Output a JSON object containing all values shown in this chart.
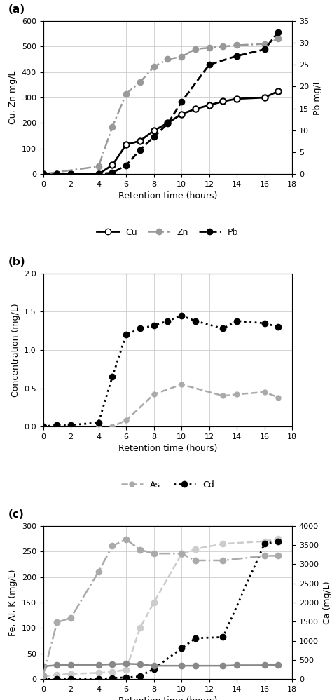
{
  "panel_a": {
    "x_cu": [
      0,
      1,
      2,
      4,
      5,
      6,
      7,
      8,
      9,
      10,
      11,
      12,
      13,
      14,
      16,
      17
    ],
    "y_cu": [
      0,
      0,
      0,
      0,
      35,
      115,
      130,
      170,
      200,
      235,
      255,
      270,
      285,
      295,
      300,
      325
    ],
    "x_zn": [
      0,
      4,
      5,
      6,
      7,
      8,
      9,
      10,
      11,
      12,
      13,
      14,
      16,
      17
    ],
    "y_zn": [
      0,
      30,
      185,
      315,
      360,
      420,
      450,
      460,
      490,
      495,
      500,
      505,
      510,
      530
    ],
    "x_pb": [
      0,
      1,
      2,
      4,
      5,
      6,
      7,
      8,
      9,
      10,
      12,
      14,
      16,
      17
    ],
    "y_pb": [
      0,
      0,
      0,
      0,
      0.3,
      2.0,
      5.5,
      8.5,
      11.5,
      16.5,
      25,
      27,
      28.5,
      32.5
    ],
    "Cu_color": "#000000",
    "Zn_color": "#999999",
    "Pb_color": "#000000",
    "ylabel_left": "Cu, Zn mg/L",
    "ylabel_right": "Pb mg/L",
    "ylim_left": [
      0,
      600
    ],
    "ylim_right": [
      0,
      35
    ],
    "yticks_left": [
      0,
      100,
      200,
      300,
      400,
      500,
      600
    ],
    "yticks_right": [
      0,
      5,
      10,
      15,
      20,
      25,
      30,
      35
    ],
    "xlabel": "Retention time (hours)",
    "xlim": [
      0,
      18
    ],
    "xticks": [
      0,
      2,
      4,
      6,
      8,
      10,
      12,
      14,
      16,
      18
    ],
    "label": "(a)"
  },
  "panel_b": {
    "x_as": [
      0,
      4,
      5,
      6,
      8,
      10,
      13,
      14,
      16,
      17
    ],
    "y_as": [
      0,
      0,
      0,
      0.08,
      0.42,
      0.55,
      0.4,
      0.42,
      0.45,
      0.38
    ],
    "x_cd": [
      0,
      1,
      2,
      4,
      5,
      6,
      7,
      8,
      9,
      10,
      11,
      13,
      14,
      16,
      17
    ],
    "y_cd": [
      0,
      0.02,
      0.02,
      0.05,
      0.65,
      1.2,
      1.28,
      1.32,
      1.38,
      1.45,
      1.38,
      1.28,
      1.38,
      1.35,
      1.3
    ],
    "As_color": "#aaaaaa",
    "Cd_color": "#000000",
    "ylabel": "Concentration (mg/L)",
    "ylim": [
      0,
      2
    ],
    "yticks": [
      0,
      0.5,
      1.0,
      1.5,
      2.0
    ],
    "xlabel": "Retention time (hours)",
    "xlim": [
      0,
      18
    ],
    "xticks": [
      0,
      2,
      4,
      6,
      8,
      10,
      12,
      14,
      16,
      18
    ],
    "label": "(b)"
  },
  "panel_c": {
    "x_fe": [
      0,
      1,
      2,
      4,
      5,
      6,
      7,
      8,
      10,
      11,
      13,
      16,
      17
    ],
    "y_fe": [
      5,
      8,
      10,
      12,
      14,
      18,
      100,
      150,
      245,
      255,
      265,
      270,
      275
    ],
    "x_al": [
      0,
      1,
      2,
      4,
      5,
      6,
      7,
      8,
      10,
      11,
      13,
      16,
      17
    ],
    "y_al": [
      0,
      0,
      0,
      0,
      2,
      3,
      5,
      20,
      60,
      80,
      82,
      265,
      270
    ],
    "x_k": [
      0,
      1,
      2,
      4,
      5,
      6,
      7,
      8,
      10,
      11,
      13,
      14,
      16,
      17
    ],
    "y_k": [
      25,
      27,
      28,
      28,
      29,
      30,
      29,
      26,
      26,
      26,
      26,
      27,
      27,
      28
    ],
    "x_ca": [
      0,
      1,
      2,
      4,
      5,
      6,
      7,
      8,
      10,
      11,
      13,
      16,
      17
    ],
    "y_ca": [
      100,
      1480,
      1600,
      2800,
      3480,
      3650,
      3380,
      3280,
      3280,
      3100,
      3100,
      3220,
      3220
    ],
    "Fe_color": "#cccccc",
    "Al_color": "#000000",
    "K_color": "#888888",
    "Ca_color": "#aaaaaa",
    "ylabel_left": "Fe, Al, K (mg/L)",
    "ylabel_right": "Ca (mg/L)",
    "ylim_left": [
      0,
      300
    ],
    "ylim_right": [
      0,
      4000
    ],
    "yticks_left": [
      0,
      50,
      100,
      150,
      200,
      250,
      300
    ],
    "yticks_right": [
      0,
      500,
      1000,
      1500,
      2000,
      2500,
      3000,
      3500,
      4000
    ],
    "xlabel": "Retention time (hours)",
    "xlim": [
      0,
      18
    ],
    "xticks": [
      0,
      2,
      4,
      6,
      8,
      10,
      12,
      14,
      16,
      18
    ],
    "label": "(c)"
  },
  "grid_color": "#cccccc",
  "tick_fontsize": 8,
  "label_fontsize": 9,
  "panel_label_fontsize": 11
}
